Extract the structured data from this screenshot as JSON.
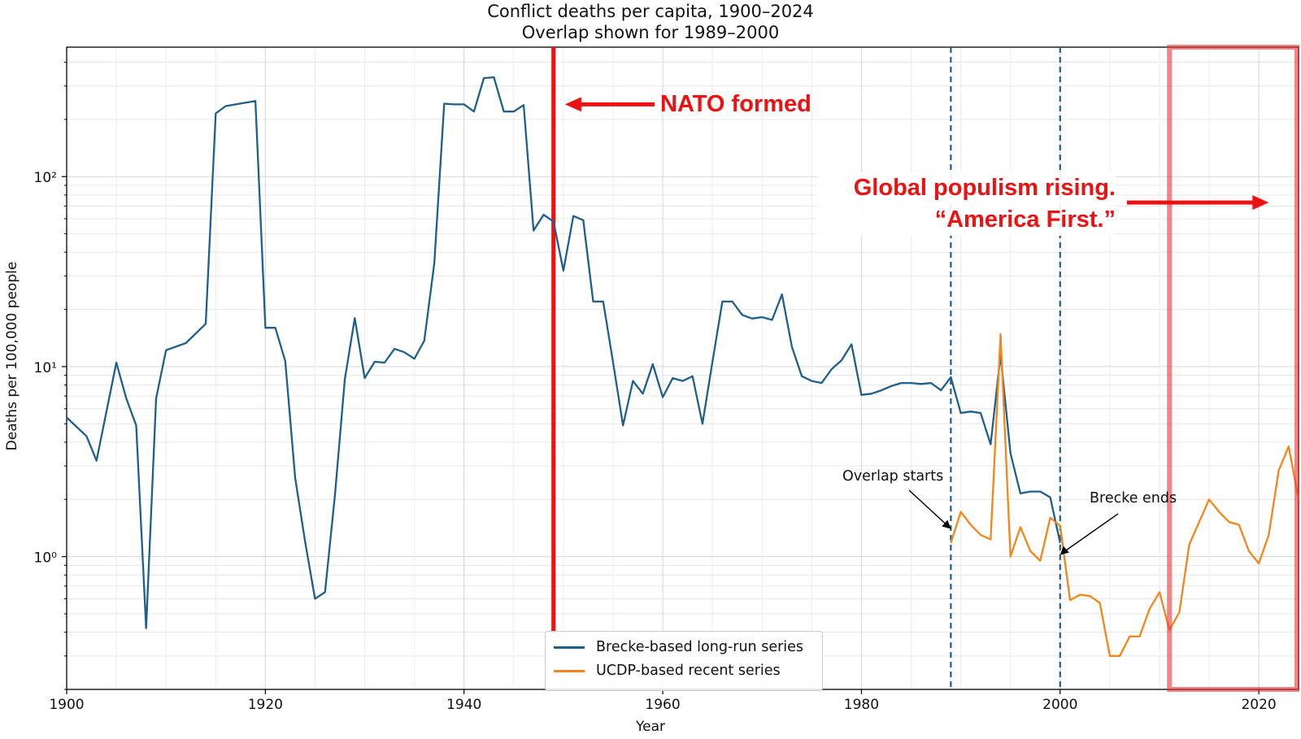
{
  "title": [
    "Conflict deaths per capita, 1900–2024",
    "Overlap shown for 1989–2000"
  ],
  "chart_data": {
    "type": "line",
    "title": "Conflict deaths per capita, 1900–2024",
    "subtitle": "Overlap shown for 1989–2000",
    "xlabel": "Year",
    "ylabel": "Deaths per 100,000 people",
    "yscale": "log",
    "xlim": [
      1900,
      2024
    ],
    "ylim": [
      0.2,
      480
    ],
    "x_ticks": [
      1900,
      1920,
      1940,
      1960,
      1980,
      2000,
      2020
    ],
    "y_ticks": [
      {
        "value": 1,
        "label": "10⁰"
      },
      {
        "value": 10,
        "label": "10¹"
      },
      {
        "value": 100,
        "label": "10²"
      }
    ],
    "grid": true,
    "legend_position": "bottom-center",
    "series": [
      {
        "name": "Brecke-based long-run series",
        "color": "#1f5f8b",
        "x": [
          1900,
          1902,
          1903,
          1905,
          1906,
          1907,
          1908,
          1909,
          1910,
          1912,
          1914,
          1915,
          1916,
          1919,
          1920,
          1921,
          1922,
          1923,
          1924,
          1925,
          1926,
          1927,
          1928,
          1929,
          1930,
          1931,
          1932,
          1933,
          1934,
          1935,
          1936,
          1937,
          1938,
          1939,
          1940,
          1941,
          1942,
          1943,
          1944,
          1945,
          1946,
          1947,
          1948,
          1949,
          1950,
          1951,
          1952,
          1953,
          1954,
          1955,
          1956,
          1957,
          1958,
          1959,
          1960,
          1961,
          1962,
          1963,
          1964,
          1965,
          1966,
          1967,
          1968,
          1969,
          1970,
          1971,
          1972,
          1973,
          1974,
          1975,
          1976,
          1977,
          1978,
          1979,
          1980,
          1981,
          1982,
          1983,
          1984,
          1985,
          1986,
          1987,
          1988,
          1989,
          1990,
          1991,
          1992,
          1993,
          1994,
          1995,
          1996,
          1997,
          1998,
          1999,
          2000
        ],
        "values": [
          5.4,
          4.3,
          3.2,
          10.5,
          6.8,
          4.9,
          0.42,
          6.8,
          12.2,
          13.3,
          16.8,
          215,
          235,
          250,
          16,
          16,
          10.7,
          2.6,
          1.2,
          0.6,
          0.65,
          2.1,
          8.6,
          18,
          8.7,
          10.6,
          10.5,
          12.4,
          11.9,
          11,
          13.7,
          35,
          242,
          240,
          240,
          220,
          330,
          333,
          220,
          220,
          238,
          52,
          63,
          58,
          32,
          62,
          59,
          22,
          22,
          10.5,
          4.9,
          8.4,
          7.2,
          10.3,
          6.9,
          8.7,
          8.4,
          8.9,
          5.0,
          10.6,
          22,
          22,
          18.7,
          17.9,
          18.2,
          17.6,
          24,
          12.7,
          8.9,
          8.4,
          8.2,
          9.7,
          10.8,
          13.1,
          7.1,
          7.2,
          7.5,
          7.9,
          8.2,
          8.2,
          8.1,
          8.2,
          7.5,
          8.8,
          5.7,
          5.8,
          5.7,
          3.9,
          11.5,
          3.5,
          2.15,
          2.2,
          2.2,
          2.05,
          1.18
        ]
      },
      {
        "name": "UCDP-based recent series",
        "color": "#f58518",
        "x": [
          1989,
          1990,
          1991,
          1992,
          1993,
          1994,
          1995,
          1996,
          1997,
          1998,
          1999,
          2000,
          2001,
          2002,
          2003,
          2004,
          2005,
          2006,
          2007,
          2008,
          2009,
          2010,
          2011,
          2012,
          2013,
          2015,
          2016,
          2017,
          2018,
          2019,
          2020,
          2021,
          2022,
          2023,
          2024
        ],
        "values": [
          1.18,
          1.72,
          1.47,
          1.3,
          1.23,
          14.8,
          1.0,
          1.43,
          1.07,
          0.95,
          1.6,
          1.45,
          0.59,
          0.63,
          0.62,
          0.57,
          0.3,
          0.3,
          0.38,
          0.38,
          0.53,
          0.65,
          0.41,
          0.51,
          1.16,
          2.0,
          1.72,
          1.52,
          1.47,
          1.07,
          0.92,
          1.3,
          2.84,
          3.8,
          2.0
        ]
      }
    ],
    "vertical_lines": [
      {
        "x": 1949,
        "style": "solid",
        "color": "#ee1111"
      },
      {
        "x": 1989,
        "style": "dashed",
        "color": "#1f5f8b"
      },
      {
        "x": 2000,
        "style": "dashed",
        "color": "#1f5f8b"
      }
    ],
    "highlight_box": {
      "x_start": 2011,
      "x_end": 2024,
      "color": "#ee3333"
    },
    "annotations": [
      {
        "text": "NATO formed",
        "color": "#ee1111",
        "arrow_x": 1950,
        "y": 240
      },
      {
        "text": "Global populism rising. “America First.”",
        "color": "#ee1111",
        "arrow_x": 2021,
        "y": 73
      },
      {
        "text": "Overlap starts",
        "arrow_x": 1989,
        "y": 1.4
      },
      {
        "text": "Brecke ends",
        "arrow_x": 2000,
        "y": 1.02
      }
    ]
  },
  "legend": [
    {
      "label": "Brecke-based long-run series",
      "color": "#1f5f8b"
    },
    {
      "label": "UCDP-based recent series",
      "color": "#f58518"
    }
  ],
  "annotations_text": {
    "nato": "NATO formed",
    "populism_1": "Global populism rising.",
    "populism_2": "“America First.”",
    "overlap": "Overlap starts",
    "brecke": "Brecke ends"
  }
}
